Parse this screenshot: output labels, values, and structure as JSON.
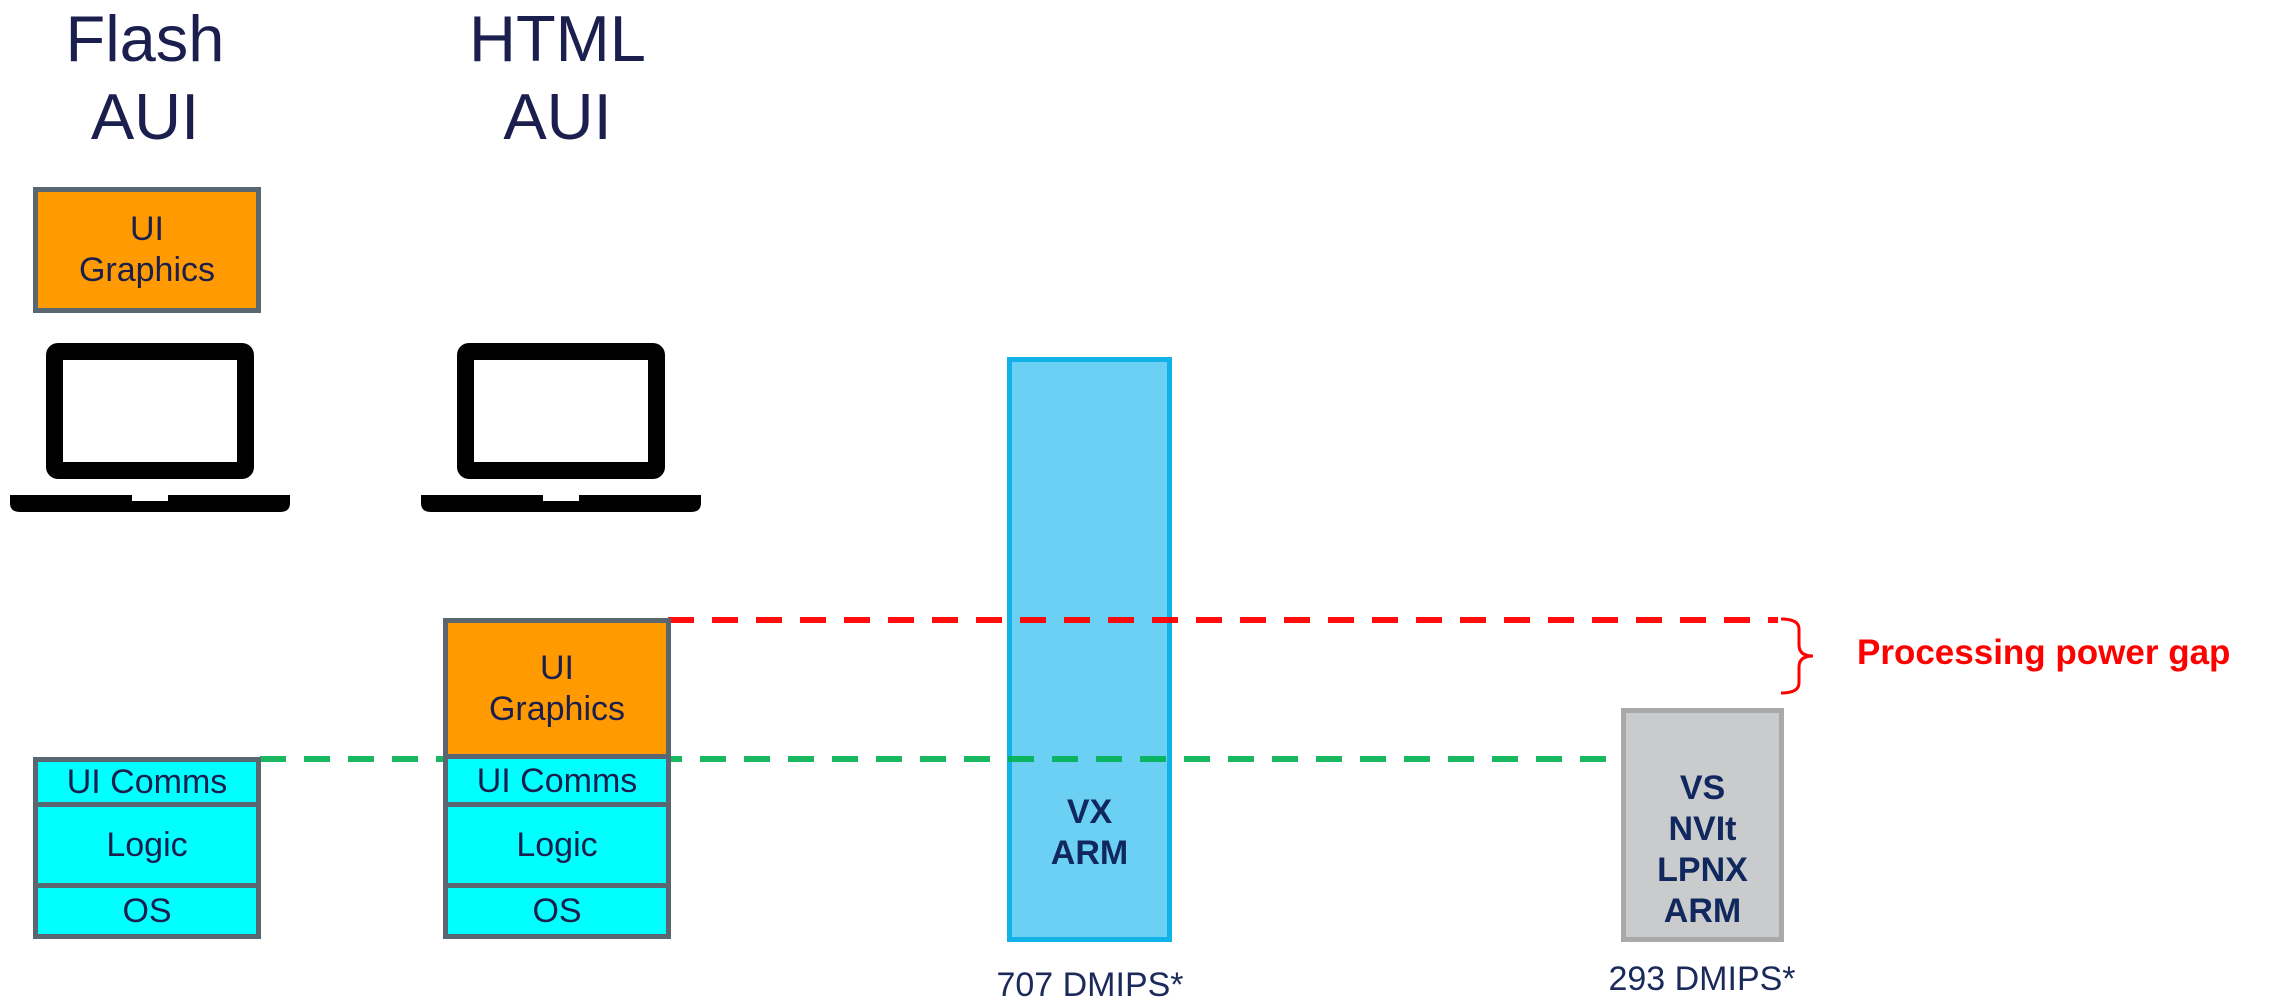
{
  "flash_column": {
    "heading_line1": "Flash",
    "heading_line2": "AUI",
    "device_block_line1": "UI",
    "device_block_line2": "Graphics",
    "stack": {
      "comms": "UI Comms",
      "logic": "Logic",
      "os": "OS"
    }
  },
  "html_column": {
    "heading_line1": "HTML",
    "heading_line2": "AUI",
    "stack": {
      "graphics_line1": "UI",
      "graphics_line2": "Graphics",
      "comms": "UI Comms",
      "logic": "Logic",
      "os": "OS"
    }
  },
  "bars": {
    "high": {
      "line1": "VX",
      "line2": "ARM",
      "caption": "707 DMIPS*",
      "fill_color": "#6bd0f4",
      "border_color": "#10b2e8"
    },
    "low": {
      "line1": "VS",
      "line2": "NVIt",
      "line3": "LPNX",
      "line4": "ARM",
      "caption": "293 DMIPS*",
      "fill_color": "#cacbcd",
      "border_color": "#a7a9ab"
    }
  },
  "annotations": {
    "gap_label": "Processing power gap",
    "red_line_color": "#ff0000",
    "green_line_color": "#00b050"
  },
  "icons": {
    "flash_device": "laptop-icon",
    "html_device": "laptop-icon",
    "gap_marker": "right-brace-icon"
  }
}
